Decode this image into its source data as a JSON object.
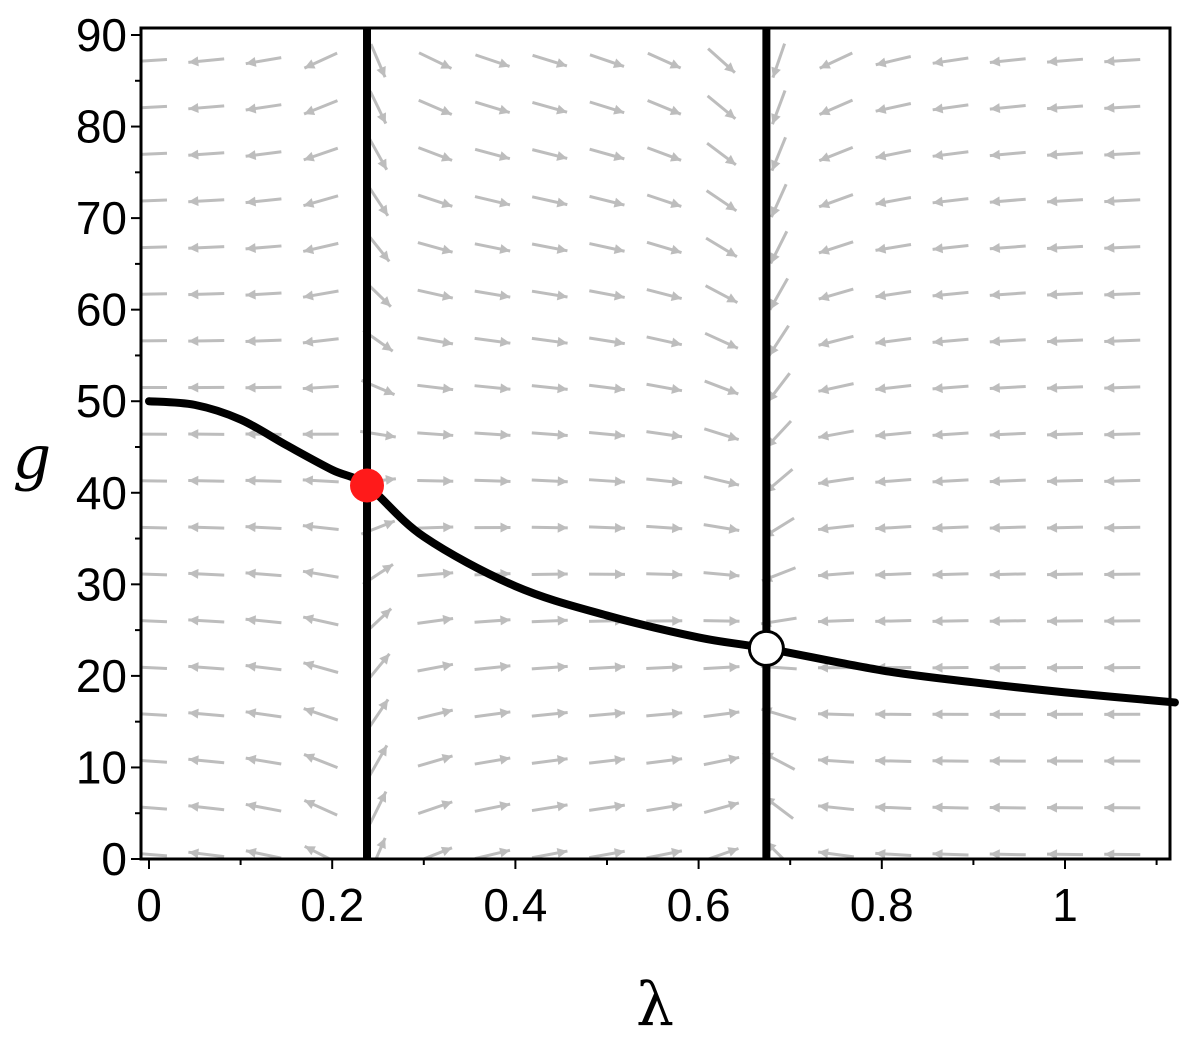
{
  "chart_data": {
    "type": "line",
    "xlabel": "λ",
    "ylabel": "g",
    "xlim": [
      0,
      1.12
    ],
    "ylim": [
      0,
      90
    ],
    "x_ticks": [
      "0",
      "0.2",
      "0.4",
      "0.6",
      "0.8",
      "1"
    ],
    "x_tick_values": [
      0,
      0.2,
      0.4,
      0.6,
      0.8,
      1
    ],
    "y_ticks": [
      "0",
      "10",
      "20",
      "30",
      "40",
      "50",
      "60",
      "70",
      "80",
      "90"
    ],
    "y_tick_values": [
      0,
      10,
      20,
      30,
      40,
      50,
      60,
      70,
      80,
      90
    ],
    "vector_field": true,
    "vertical_lines": [
      0.238,
      0.674
    ],
    "curve": {
      "x": [
        0,
        0.05,
        0.1,
        0.15,
        0.2,
        0.238,
        0.3,
        0.4,
        0.5,
        0.6,
        0.674,
        0.8,
        0.9,
        1.0,
        1.12
      ],
      "y": [
        50,
        49.6,
        48,
        45.2,
        42.5,
        40.8,
        35.2,
        29.8,
        26.6,
        24.2,
        23.0,
        20.6,
        19.3,
        18.2,
        17.1
      ]
    },
    "fixed_points": [
      {
        "x": 0.238,
        "y": 40.8,
        "kind": "stable",
        "color": "#ff1a1a"
      },
      {
        "x": 0.674,
        "y": 23.0,
        "kind": "unstable",
        "color": "#ffffff"
      }
    ],
    "colors": {
      "curve": "#000000",
      "field": "#bdbdbd"
    }
  }
}
